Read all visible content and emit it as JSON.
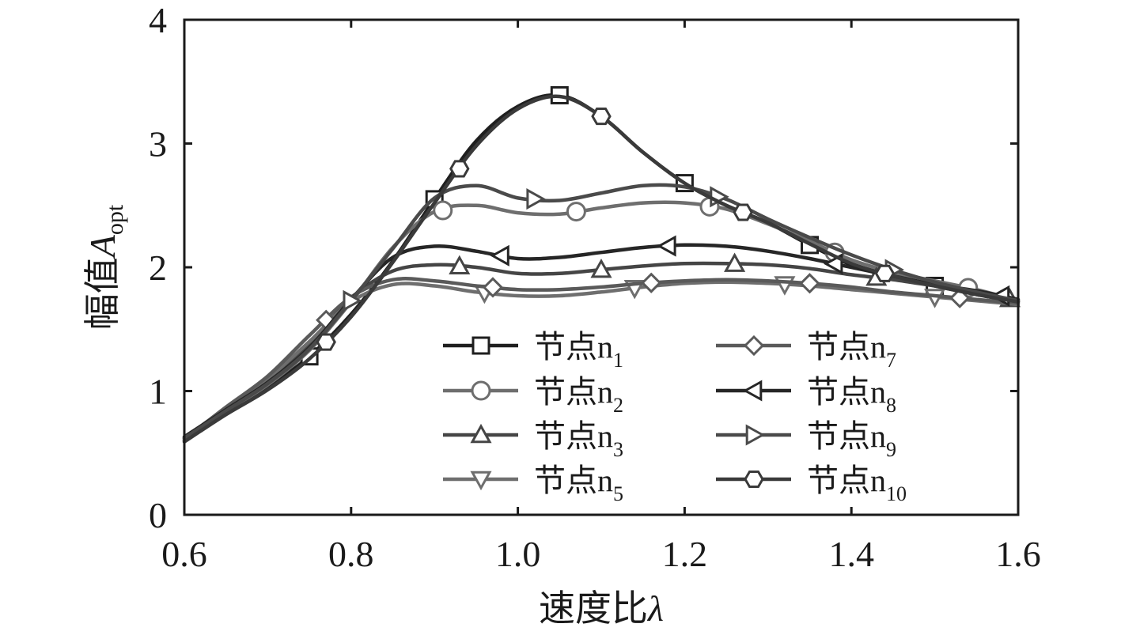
{
  "chart_data": {
    "type": "line",
    "xlabel": "速度比",
    "xlabel_symbol": "λ",
    "ylabel_main": "幅值",
    "ylabel_symbol": "A",
    "ylabel_subscript": "opt",
    "xlim": [
      0.6,
      1.6
    ],
    "ylim": [
      0,
      4
    ],
    "x_ticks": [
      0.6,
      0.8,
      1.0,
      1.2,
      1.4,
      1.6
    ],
    "x_tick_labels": [
      "0.6",
      "0.8",
      "1.0",
      "1.2",
      "1.4",
      "1.6"
    ],
    "y_ticks": [
      0,
      1,
      2,
      3,
      4
    ],
    "y_tick_labels": [
      "0",
      "1",
      "2",
      "3",
      "4"
    ],
    "grid": false,
    "legend_placement": "lower-right",
    "x": [
      0.6,
      0.65,
      0.7,
      0.75,
      0.8,
      0.85,
      0.9,
      0.95,
      1.0,
      1.05,
      1.1,
      1.15,
      1.2,
      1.25,
      1.3,
      1.35,
      1.4,
      1.45,
      1.5,
      1.55,
      1.6
    ],
    "series": [
      {
        "name_prefix": "节点",
        "name_base": "n",
        "name_sub": "1",
        "marker": "square",
        "color": "#1f1f1f",
        "values": [
          0.6,
          0.82,
          1.03,
          1.28,
          1.62,
          2.05,
          2.55,
          3.02,
          3.3,
          3.39,
          3.22,
          2.93,
          2.68,
          2.5,
          2.36,
          2.18,
          2.02,
          1.92,
          1.85,
          1.78,
          1.72
        ],
        "marker_x": [
          0.75,
          0.9,
          1.05,
          1.2,
          1.35,
          1.5
        ]
      },
      {
        "name_prefix": "节点",
        "name_base": "n",
        "name_sub": "2",
        "marker": "circle",
        "color": "#6e6e6e",
        "values": [
          0.62,
          0.84,
          1.05,
          1.33,
          1.72,
          2.16,
          2.45,
          2.5,
          2.44,
          2.43,
          2.48,
          2.52,
          2.52,
          2.47,
          2.35,
          2.21,
          2.06,
          1.96,
          1.89,
          1.82,
          1.73
        ],
        "marker_x": [
          0.91,
          1.07,
          1.23,
          1.38,
          1.54
        ]
      },
      {
        "name_prefix": "节点",
        "name_base": "n",
        "name_sub": "3",
        "marker": "triangle-up",
        "color": "#454545",
        "values": [
          0.62,
          0.86,
          1.08,
          1.38,
          1.75,
          1.97,
          2.02,
          2.0,
          1.95,
          1.95,
          1.98,
          2.01,
          2.03,
          2.03,
          2.02,
          1.99,
          1.94,
          1.9,
          1.85,
          1.8,
          1.73
        ],
        "marker_x": [
          0.93,
          1.1,
          1.26,
          1.43,
          1.59
        ]
      },
      {
        "name_prefix": "节点",
        "name_base": "n",
        "name_sub": "5",
        "marker": "triangle-down",
        "color": "#6e6e6e",
        "values": [
          0.6,
          0.86,
          1.1,
          1.4,
          1.72,
          1.86,
          1.85,
          1.8,
          1.77,
          1.77,
          1.8,
          1.84,
          1.87,
          1.88,
          1.87,
          1.85,
          1.82,
          1.79,
          1.76,
          1.73,
          1.7
        ],
        "marker_x": [
          0.96,
          1.14,
          1.32,
          1.5
        ]
      },
      {
        "name_prefix": "节点",
        "name_base": "n",
        "name_sub": "7",
        "marker": "diamond",
        "color": "#5a5a5a",
        "values": [
          0.61,
          0.87,
          1.12,
          1.45,
          1.76,
          1.9,
          1.89,
          1.85,
          1.82,
          1.82,
          1.84,
          1.87,
          1.89,
          1.9,
          1.89,
          1.87,
          1.84,
          1.8,
          1.77,
          1.74,
          1.71
        ],
        "marker_x": [
          0.77,
          0.97,
          1.16,
          1.35,
          1.53
        ]
      },
      {
        "name_prefix": "节点",
        "name_base": "n",
        "name_sub": "8",
        "marker": "triangle-left",
        "color": "#262626",
        "values": [
          0.63,
          0.85,
          1.07,
          1.35,
          1.74,
          2.08,
          2.17,
          2.13,
          2.07,
          2.08,
          2.12,
          2.16,
          2.18,
          2.17,
          2.13,
          2.07,
          2.0,
          1.93,
          1.86,
          1.81,
          1.74
        ],
        "marker_x": [
          0.98,
          1.18,
          1.38,
          1.58
        ]
      },
      {
        "name_prefix": "节点",
        "name_base": "n",
        "name_sub": "9",
        "marker": "triangle-right",
        "color": "#4a4a4a",
        "values": [
          0.62,
          0.84,
          1.06,
          1.34,
          1.73,
          2.15,
          2.56,
          2.66,
          2.56,
          2.54,
          2.6,
          2.66,
          2.65,
          2.55,
          2.39,
          2.24,
          2.1,
          1.98,
          1.88,
          1.8,
          1.73
        ],
        "marker_x": [
          0.8,
          1.02,
          1.24,
          1.45
        ]
      },
      {
        "name_prefix": "节点",
        "name_base": "n",
        "name_sub": "10",
        "marker": "hexagon",
        "color": "#3a3a3a",
        "values": [
          0.59,
          0.81,
          1.01,
          1.26,
          1.6,
          2.04,
          2.52,
          2.98,
          3.28,
          3.38,
          3.22,
          2.93,
          2.68,
          2.5,
          2.36,
          2.19,
          2.03,
          1.93,
          1.85,
          1.78,
          1.72
        ],
        "marker_x": [
          0.77,
          0.93,
          1.1,
          1.27,
          1.44
        ]
      }
    ]
  }
}
